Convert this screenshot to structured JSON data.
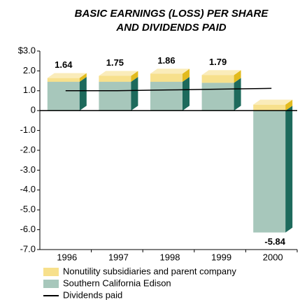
{
  "chart_data": {
    "type": "bar3d_stacked",
    "title": [
      "BASIC EARNINGS (LOSS) PER SHARE",
      "AND DIVIDENDS PAID"
    ],
    "categories": [
      "1996",
      "1997",
      "1998",
      "1999",
      "2000"
    ],
    "series": [
      {
        "name": "Southern California Edison",
        "color": "#a7c7bb",
        "side_color": "#1d6a5c",
        "values": [
          1.45,
          1.45,
          1.45,
          1.4,
          -6.14
        ]
      },
      {
        "name": "Nonutility subsidiaries and parent company",
        "color": "#f7e08c",
        "side_color": "#e2bb1e",
        "values": [
          0.19,
          0.3,
          0.41,
          0.39,
          0.3
        ]
      }
    ],
    "totals": [
      1.64,
      1.75,
      1.86,
      1.79,
      -5.84
    ],
    "dividends": {
      "name": "Dividends paid",
      "color": "#000000",
      "values": [
        1.0,
        1.0,
        1.04,
        1.08,
        1.12
      ]
    },
    "ylim": [
      -7,
      3
    ],
    "yticks": [
      {
        "value": 3,
        "label": "$3.0"
      },
      {
        "value": 2,
        "label": "2.0"
      },
      {
        "value": 1,
        "label": "1.0"
      },
      0,
      {
        "value": -1,
        "label": "-1.0"
      },
      {
        "value": -2,
        "label": "-2.0"
      },
      {
        "value": -3,
        "label": "-3.0"
      },
      {
        "value": -4,
        "label": "-4.0"
      },
      {
        "value": -5,
        "label": "-5.0"
      },
      {
        "value": -6,
        "label": "-6.0"
      },
      {
        "value": -7,
        "label": "-7.0"
      }
    ]
  }
}
